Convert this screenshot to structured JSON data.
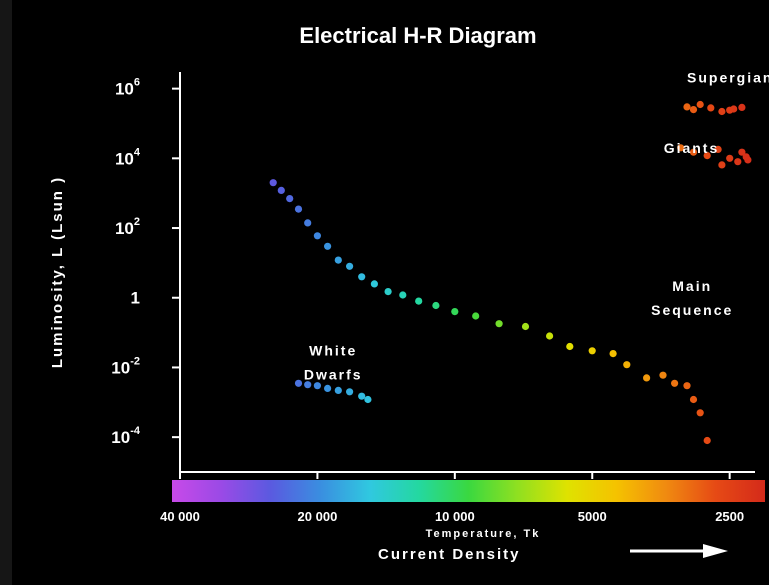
{
  "chart_data": {
    "type": "scatter",
    "title": "Electrical H-R Diagram",
    "ylabel": "Luminosity, L (Lsun )",
    "xlabel": "Temperature, Tk",
    "x_scale": "log",
    "x_reversed": true,
    "y_scale": "log",
    "xlim": [
      40000,
      2200
    ],
    "ylim": [
      1e-05,
      3000000
    ],
    "x_ticks": [
      {
        "value": 2500,
        "label": "2500"
      },
      {
        "value": 5000,
        "label": "5000"
      },
      {
        "value": 10000,
        "label": "10 000"
      },
      {
        "value": 20000,
        "label": "20 000"
      },
      {
        "value": 40000,
        "label": "40 000"
      }
    ],
    "y_ticks": [
      {
        "value": 1000000,
        "base": "10",
        "exp": "6"
      },
      {
        "value": 10000,
        "base": "10",
        "exp": "4"
      },
      {
        "value": 100,
        "base": "10",
        "exp": "2"
      },
      {
        "value": 1,
        "base": "1",
        "exp": ""
      },
      {
        "value": 0.01,
        "base": "10",
        "exp": "-2"
      },
      {
        "value": 0.0001,
        "base": "10",
        "exp": "-4"
      }
    ],
    "current_density_label": "Current Density",
    "grid": false,
    "series": [
      {
        "name": "Supergiants",
        "points": [
          [
            3100,
            300000
          ],
          [
            3000,
            250000
          ],
          [
            2900,
            350000
          ],
          [
            2750,
            280000
          ],
          [
            2600,
            220000
          ],
          [
            2450,
            260000
          ],
          [
            2350,
            290000
          ],
          [
            2500,
            240000
          ]
        ]
      },
      {
        "name": "Giants",
        "points": [
          [
            3200,
            20000
          ],
          [
            3000,
            15000
          ],
          [
            2800,
            12000
          ],
          [
            2650,
            18000
          ],
          [
            2500,
            10000
          ],
          [
            2400,
            8000
          ],
          [
            2350,
            15000
          ],
          [
            2300,
            11000
          ],
          [
            2280,
            9000
          ],
          [
            2600,
            6500
          ]
        ]
      },
      {
        "name": "Main Sequence",
        "points": [
          [
            2800,
            8e-05
          ],
          [
            2900,
            0.0005
          ],
          [
            3000,
            0.0012
          ],
          [
            3100,
            0.003
          ],
          [
            3300,
            0.0035
          ],
          [
            3500,
            0.006
          ],
          [
            3800,
            0.005
          ],
          [
            4200,
            0.012
          ],
          [
            4500,
            0.025
          ],
          [
            5000,
            0.03
          ],
          [
            5600,
            0.04
          ],
          [
            6200,
            0.08
          ],
          [
            7000,
            0.15
          ],
          [
            8000,
            0.18
          ],
          [
            9000,
            0.3
          ],
          [
            10000,
            0.4
          ],
          [
            11000,
            0.6
          ],
          [
            12000,
            0.8
          ],
          [
            13000,
            1.2
          ],
          [
            14000,
            1.5
          ],
          [
            15000,
            2.5
          ],
          [
            16000,
            4
          ],
          [
            17000,
            8
          ],
          [
            18000,
            12
          ],
          [
            19000,
            30
          ],
          [
            20000,
            60
          ],
          [
            21000,
            140
          ],
          [
            22000,
            350
          ],
          [
            23000,
            700
          ],
          [
            24000,
            1200
          ],
          [
            25000,
            2000
          ]
        ]
      },
      {
        "name": "White Dwarfs",
        "points": [
          [
            15500,
            0.0012
          ],
          [
            16000,
            0.0015
          ],
          [
            17000,
            0.002
          ],
          [
            18000,
            0.0022
          ],
          [
            19000,
            0.0025
          ],
          [
            20000,
            0.003
          ],
          [
            21000,
            0.0032
          ],
          [
            22000,
            0.0035
          ]
        ]
      }
    ],
    "colors": {
      "temperature_scale": [
        "#d42a1a",
        "#e64a15",
        "#f08a10",
        "#f5c200",
        "#dfe200",
        "#90e020",
        "#3ad840",
        "#24d8a0",
        "#30c8e0",
        "#3a8ee0",
        "#5a5ae0",
        "#9a4ae6",
        "#c84ae8"
      ],
      "axis": "#ffffff",
      "background": "#000000"
    }
  }
}
